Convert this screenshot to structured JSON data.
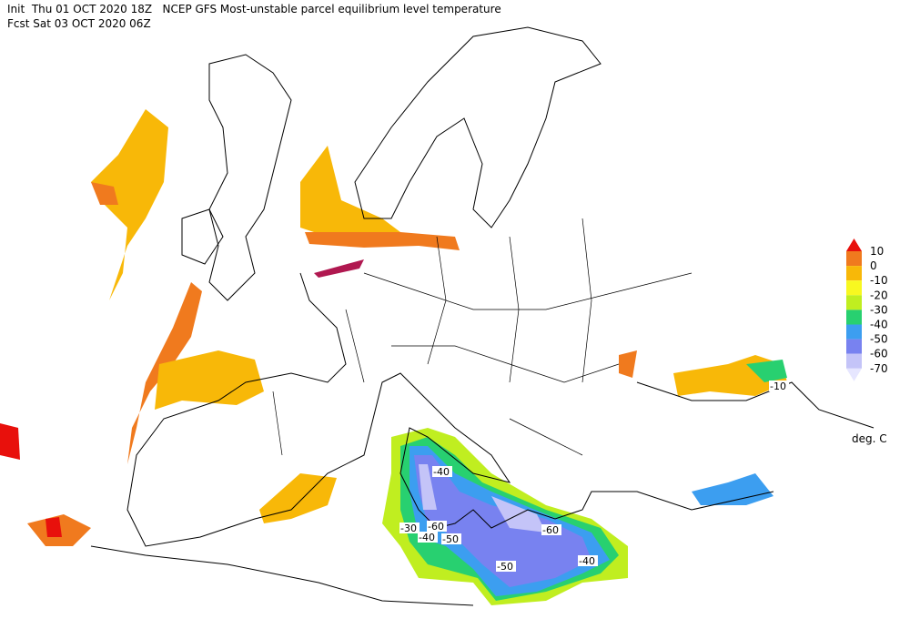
{
  "header": {
    "line1": "Init  Thu 01 OCT 2020 18Z   NCEP GFS Most-unstable parcel equilibrium level temperature",
    "line2": "Fcst Sat 03 OCT 2020 06Z"
  },
  "legend": {
    "levels": [
      10,
      0,
      -10,
      -20,
      -30,
      -40,
      -50,
      -60,
      -70
    ],
    "colors": [
      "#e8100c",
      "#f07a1e",
      "#f8b808",
      "#f8f820",
      "#c0ee20",
      "#28d070",
      "#3c9ef0",
      "#7882f0",
      "#c4c4f8",
      "#e6e6ff"
    ],
    "unit": "deg. C"
  },
  "contour_labels": [
    "-40",
    "-60",
    "-30",
    "-40",
    "-50",
    "-50",
    "-60",
    "-40",
    "-10"
  ]
}
